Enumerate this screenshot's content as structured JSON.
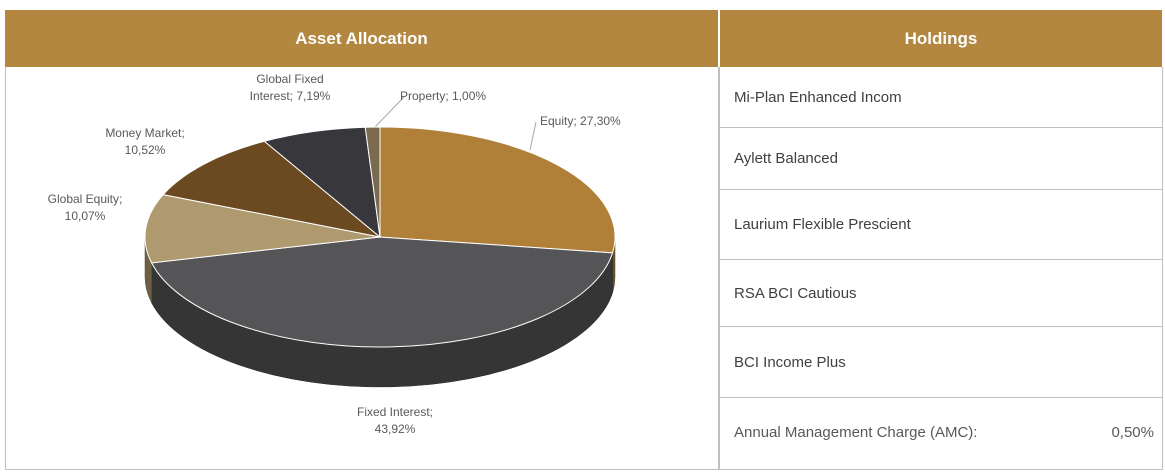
{
  "headers": {
    "allocation": "Asset Allocation",
    "holdings": "Holdings"
  },
  "chart_data": {
    "type": "pie",
    "categories": [
      "Equity",
      "Fixed Interest",
      "Global Equity",
      "Money Market",
      "Global Fixed Interest",
      "Property"
    ],
    "values": [
      27.3,
      43.92,
      10.07,
      10.52,
      7.19,
      1.0
    ],
    "value_labels": [
      "Equity; 27,30%",
      "Fixed Interest; 43,92%",
      "Global Equity; 10,07%",
      "Money Market; 10,52%",
      "Global Fixed Interest; 7,19%",
      "Property; 1,00%"
    ],
    "colors": [
      "#b08039",
      "#555557",
      "#ae9a6e",
      "#6b4a22",
      "#38373b",
      "#7a6b4f"
    ]
  },
  "holdings": [
    "Mi-Plan Enhanced Incom",
    "Aylett Balanced",
    "Laurium Flexible Prescient",
    "RSA BCI Cautious",
    "BCI Income Plus"
  ],
  "amc": {
    "label": "Annual Management Charge (AMC):",
    "value": "0,50%"
  }
}
